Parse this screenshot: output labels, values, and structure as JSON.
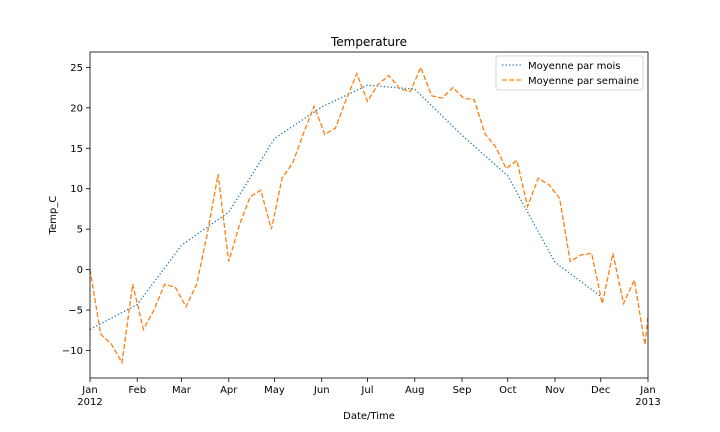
{
  "chart_data": {
    "type": "line",
    "title": "Temperature",
    "xlabel": "Date/Time",
    "ylabel": "Temp_C",
    "xlim": [
      "2012-01-01",
      "2013-01-01"
    ],
    "ylim": [
      -13.4,
      26.9
    ],
    "yticks": [
      -10,
      -5,
      0,
      5,
      10,
      15,
      20,
      25
    ],
    "xticks": [
      {
        "date": "2012-01-01",
        "label": "Jan",
        "sublabel": "2012"
      },
      {
        "date": "2012-02-01",
        "label": "Feb"
      },
      {
        "date": "2012-03-01",
        "label": "Mar"
      },
      {
        "date": "2012-04-01",
        "label": "Apr"
      },
      {
        "date": "2012-05-01",
        "label": "May"
      },
      {
        "date": "2012-06-01",
        "label": "Jun"
      },
      {
        "date": "2012-07-01",
        "label": "Jul"
      },
      {
        "date": "2012-08-01",
        "label": "Aug"
      },
      {
        "date": "2012-09-01",
        "label": "Sep"
      },
      {
        "date": "2012-10-01",
        "label": "Oct"
      },
      {
        "date": "2012-11-01",
        "label": "Nov"
      },
      {
        "date": "2012-12-01",
        "label": "Dec"
      },
      {
        "date": "2013-01-01",
        "label": "Jan",
        "sublabel": "2013"
      }
    ],
    "legend_position": "top-right",
    "grid": false,
    "series": [
      {
        "name": "Moyenne par mois",
        "color": "#1f77b4",
        "style": "dotted",
        "points": [
          [
            "2012-01-01",
            -7.4
          ],
          [
            "2012-02-01",
            -4.3
          ],
          [
            "2012-03-01",
            3.0
          ],
          [
            "2012-04-01",
            7.1
          ],
          [
            "2012-05-01",
            16.2
          ],
          [
            "2012-06-01",
            20.1
          ],
          [
            "2012-07-01",
            22.8
          ],
          [
            "2012-08-01",
            22.3
          ],
          [
            "2012-09-01",
            16.6
          ],
          [
            "2012-10-01",
            11.6
          ],
          [
            "2012-11-01",
            0.9
          ],
          [
            "2012-12-01",
            -3.3
          ]
        ]
      },
      {
        "name": "Moyenne par semaine",
        "color": "#ff7f0e",
        "style": "dashed",
        "points": [
          [
            "2012-01-01",
            0.0
          ],
          [
            "2012-01-08",
            -8.0
          ],
          [
            "2012-01-15",
            -9.2
          ],
          [
            "2012-01-22",
            -11.5
          ],
          [
            "2012-01-29",
            -1.8
          ],
          [
            "2012-02-05",
            -7.4
          ],
          [
            "2012-02-12",
            -5.0
          ],
          [
            "2012-02-19",
            -1.8
          ],
          [
            "2012-02-26",
            -2.2
          ],
          [
            "2012-03-04",
            -4.6
          ],
          [
            "2012-03-11",
            -1.8
          ],
          [
            "2012-03-18",
            4.5
          ],
          [
            "2012-03-25",
            11.8
          ],
          [
            "2012-04-01",
            1.0
          ],
          [
            "2012-04-08",
            5.5
          ],
          [
            "2012-04-15",
            9.0
          ],
          [
            "2012-04-22",
            9.8
          ],
          [
            "2012-04-29",
            5.0
          ],
          [
            "2012-05-06",
            11.3
          ],
          [
            "2012-05-13",
            13.2
          ],
          [
            "2012-05-20",
            16.8
          ],
          [
            "2012-05-27",
            20.2
          ],
          [
            "2012-06-03",
            16.7
          ],
          [
            "2012-06-10",
            17.5
          ],
          [
            "2012-06-17",
            21.0
          ],
          [
            "2012-06-24",
            24.2
          ],
          [
            "2012-07-01",
            20.8
          ],
          [
            "2012-07-08",
            22.9
          ],
          [
            "2012-07-15",
            24.0
          ],
          [
            "2012-07-22",
            22.4
          ],
          [
            "2012-07-29",
            22.0
          ],
          [
            "2012-08-05",
            25.0
          ],
          [
            "2012-08-12",
            21.5
          ],
          [
            "2012-08-19",
            21.2
          ],
          [
            "2012-08-26",
            22.5
          ],
          [
            "2012-09-02",
            21.2
          ],
          [
            "2012-09-09",
            21.0
          ],
          [
            "2012-09-16",
            16.8
          ],
          [
            "2012-09-23",
            15.2
          ],
          [
            "2012-09-30",
            12.5
          ],
          [
            "2012-10-07",
            13.5
          ],
          [
            "2012-10-14",
            7.8
          ],
          [
            "2012-10-21",
            11.3
          ],
          [
            "2012-10-28",
            10.5
          ],
          [
            "2012-11-04",
            8.8
          ],
          [
            "2012-11-11",
            1.0
          ],
          [
            "2012-11-18",
            1.8
          ],
          [
            "2012-11-25",
            2.0
          ],
          [
            "2012-12-02",
            -4.2
          ],
          [
            "2012-12-09",
            2.0
          ],
          [
            "2012-12-16",
            -4.2
          ],
          [
            "2012-12-23",
            -1.3
          ],
          [
            "2012-12-30",
            -9.3
          ],
          [
            "2013-01-01",
            -5.8
          ]
        ]
      }
    ]
  }
}
